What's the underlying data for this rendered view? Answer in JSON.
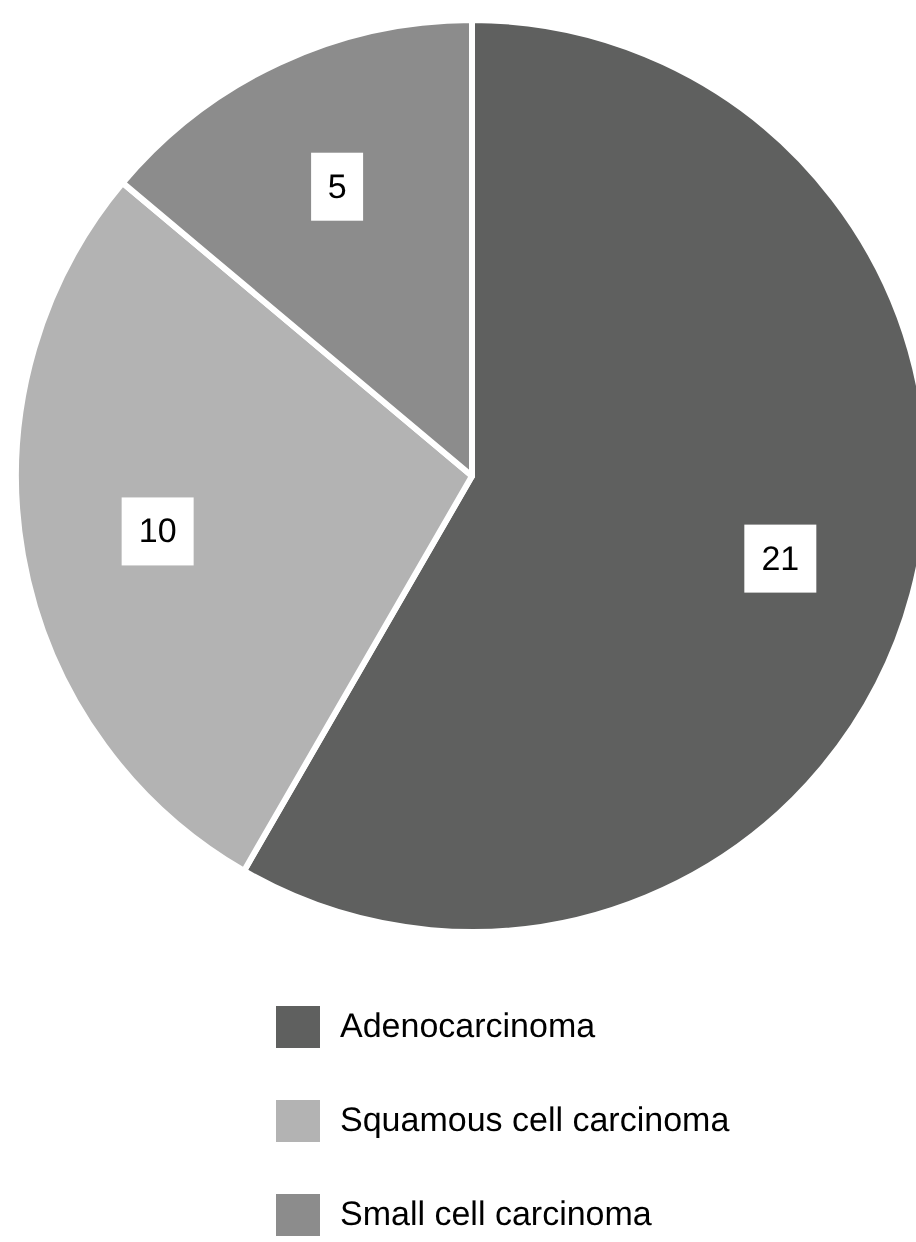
{
  "chart_data": {
    "type": "pie",
    "categories": [
      "Adenocarcinoma",
      "Squamous cell carcinoma",
      "Small cell carcinoma"
    ],
    "values": [
      21,
      10,
      5
    ],
    "colors": [
      "#5f605f",
      "#b3b3b3",
      "#8c8c8c"
    ],
    "data_labels": true,
    "legend": "bottom"
  }
}
